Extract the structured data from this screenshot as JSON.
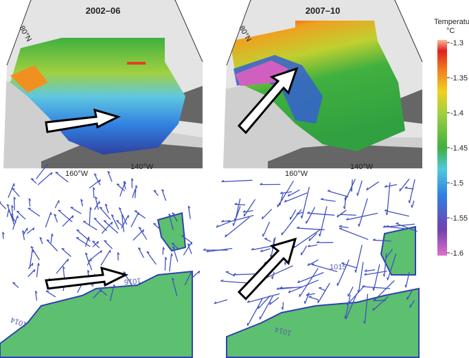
{
  "panels": [
    {
      "title": "2002–06",
      "lat_label": "80°N",
      "lon_labels": [
        "160°W",
        "140°W"
      ]
    },
    {
      "title": "2007–10",
      "lat_label": "80°N",
      "lon_labels": [
        "160°W",
        "140°W"
      ]
    }
  ],
  "wind_panels": [
    {
      "isobar_labels": [
        "1016",
        "1014"
      ]
    },
    {
      "isobar_labels": [
        "1015",
        "1014"
      ]
    }
  ],
  "colorbar": {
    "title": "Temperature",
    "unit": "°C",
    "ticks": [
      -1.3,
      -1.35,
      -1.4,
      -1.45,
      -1.5,
      -1.55,
      -1.6
    ]
  }
}
